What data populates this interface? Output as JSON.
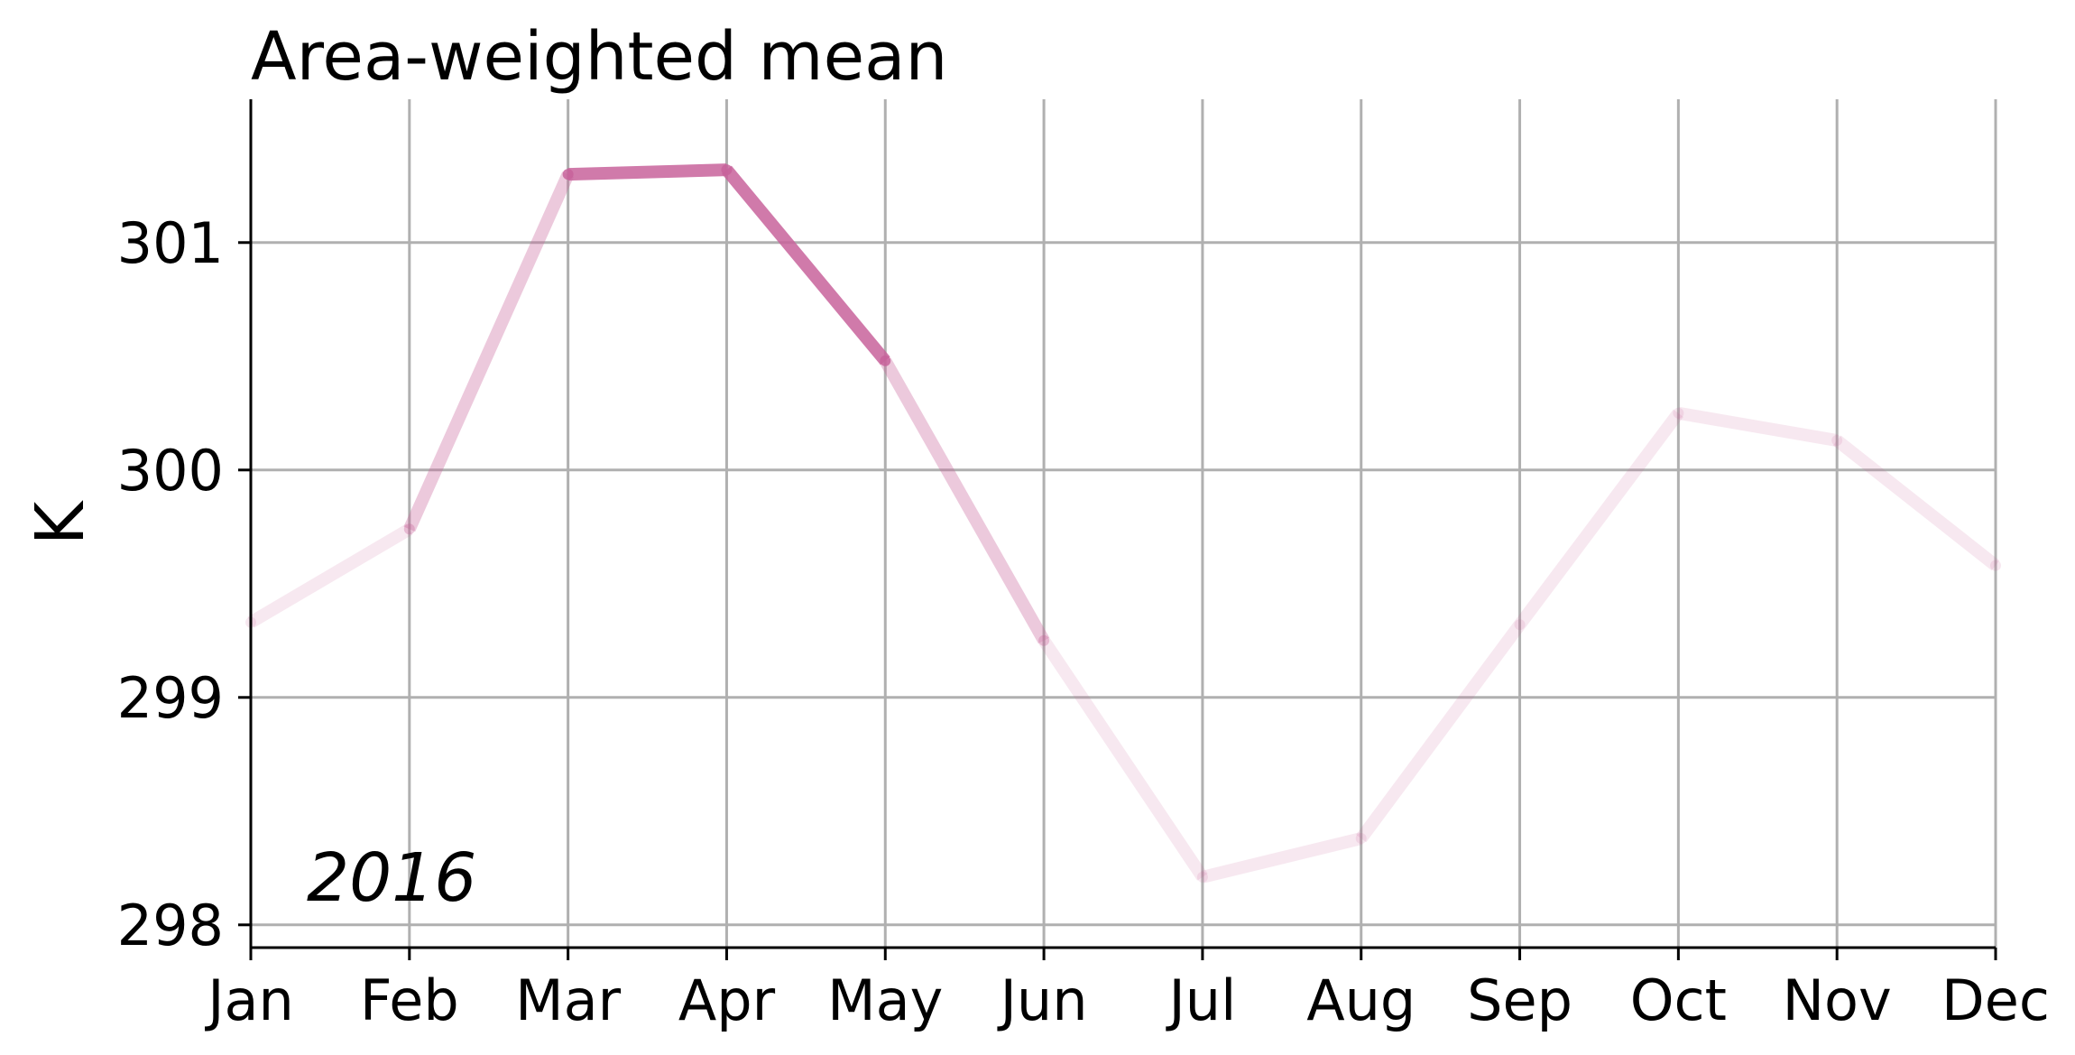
{
  "chart_data": {
    "type": "line",
    "title": "Area-weighted mean",
    "xlabel": "",
    "ylabel": "K",
    "annotation": "2016",
    "categories": [
      "Jan",
      "Feb",
      "Mar",
      "Apr",
      "May",
      "Jun",
      "Jul",
      "Aug",
      "Sep",
      "Oct",
      "Nov",
      "Dec"
    ],
    "values": [
      299.33,
      299.74,
      301.3,
      301.32,
      300.48,
      299.25,
      298.21,
      298.38,
      299.32,
      300.25,
      300.13,
      299.58
    ],
    "segment_opacity": [
      0.15,
      0.35,
      0.85,
      0.85,
      0.35,
      0.15,
      0.15,
      0.15,
      0.15,
      0.15,
      0.15
    ],
    "ylim": [
      297.9,
      301.63
    ],
    "yticks": [
      298,
      299,
      300,
      301
    ],
    "grid": true,
    "color": "#c8639b"
  }
}
